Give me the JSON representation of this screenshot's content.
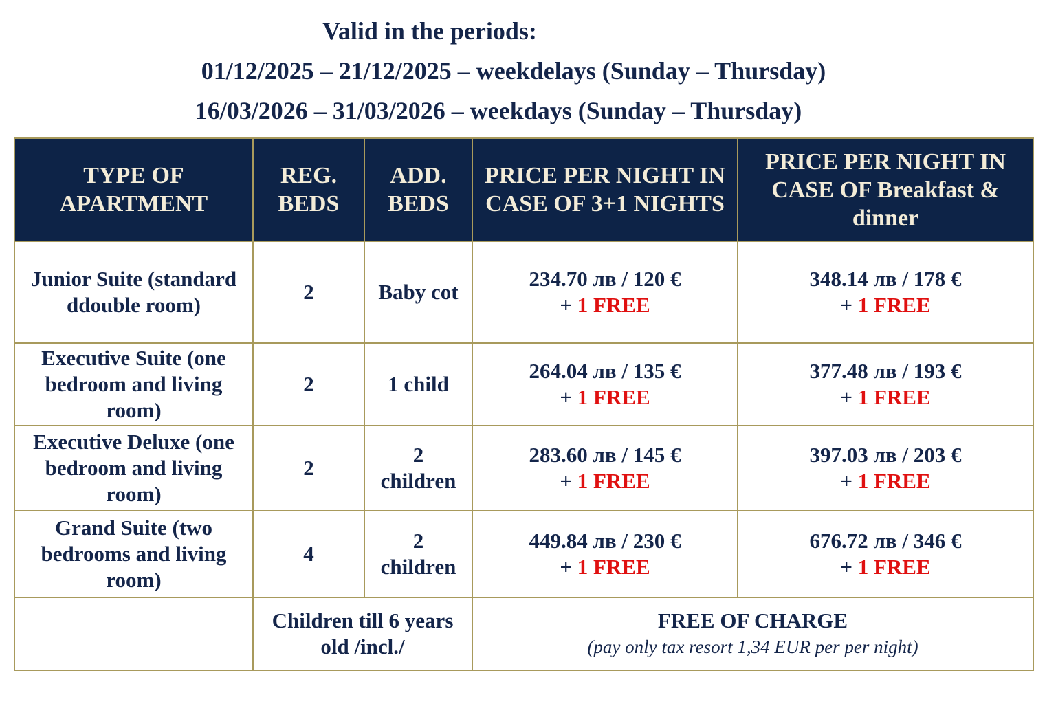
{
  "header": {
    "title": "Valid in the periods:",
    "periods": [
      "01/12/2025 – 21/12/2025 – weekdelays (Sunday – Thursday)",
      "16/03/2026 – 31/03/2026 – weekdays (Sunday – Thursday)"
    ]
  },
  "table": {
    "columns": [
      "TYPE OF APARTMENT",
      "REG. BEDS",
      "ADD. BEDS",
      "PRICE PER NIGHT IN CASE OF 3+1 NIGHTS",
      "PRICE PER NIGHT IN CASE OF Breakfast & dinner"
    ],
    "rows": [
      {
        "type": "Junior Suite (standard ddouble room)",
        "reg_beds": 2,
        "add_beds": "Baby cot",
        "price_3_1": {
          "price": "234.70 лв / 120 €",
          "plus": "+",
          "bonus": "1 FREE"
        },
        "price_bd": {
          "price": "348.14 лв / 178 €",
          "plus": "+",
          "bonus": "1 FREE"
        }
      },
      {
        "type": "Executive Suite (one bedroom and living room)",
        "reg_beds": 2,
        "add_beds": "1 child",
        "price_3_1": {
          "price": "264.04 лв / 135 €",
          "plus": "+",
          "bonus": "1 FREE"
        },
        "price_bd": {
          "price": "377.48 лв / 193 €",
          "plus": "+",
          "bonus": "1 FREE"
        }
      },
      {
        "type": "Executive Deluxe (one bedroom and living room)",
        "reg_beds": 2,
        "add_beds": "2 children",
        "price_3_1": {
          "price": "283.60 лв / 145 €",
          "plus": "+",
          "bonus": "1 FREE"
        },
        "price_bd": {
          "price": "397.03 лв / 203 €",
          "plus": "+",
          "bonus": "1 FREE"
        }
      },
      {
        "type": "Grand Suite (two bedrooms and living room)",
        "reg_beds": 4,
        "add_beds": "2 children",
        "price_3_1": {
          "price": "449.84 лв / 230 €",
          "plus": "+",
          "bonus": "1 FREE"
        },
        "price_bd": {
          "price": "676.72 лв / 346 €",
          "plus": "+",
          "bonus": "1 FREE"
        }
      }
    ],
    "footer": {
      "children": "Children till 6 years old /incl./",
      "free": "FREE OF CHARGE",
      "note": "(pay only tax resort 1,34 EUR per per night)"
    }
  }
}
